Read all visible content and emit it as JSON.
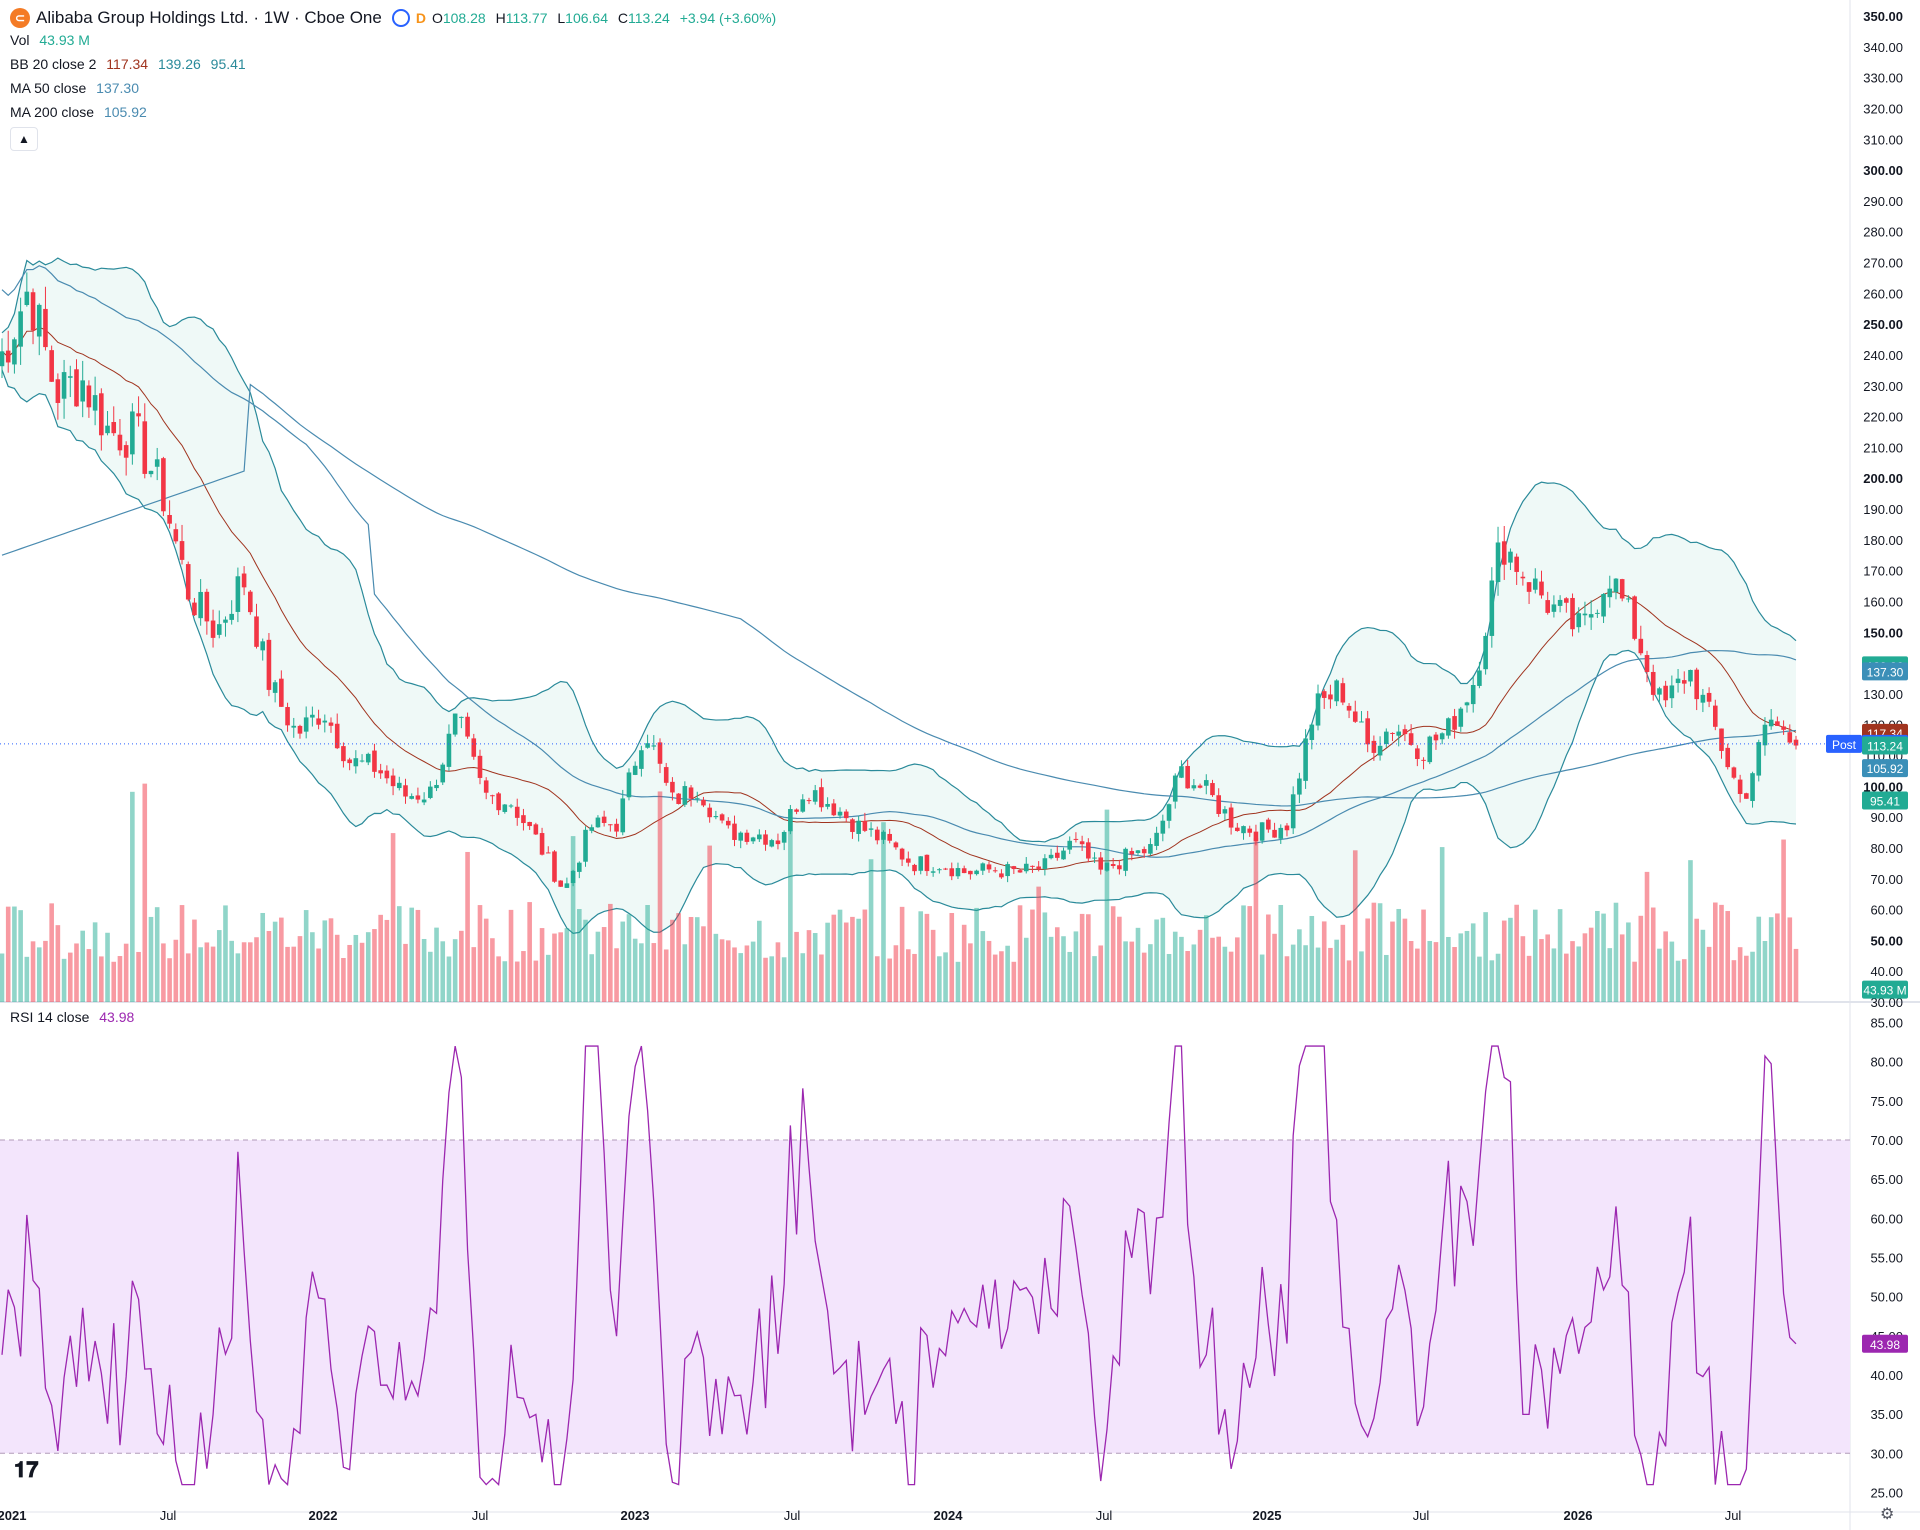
{
  "header": {
    "symbol_icon": "alibaba-logo-icon",
    "title": "Alibaba Group Holdings Ltd. · 1W · Cboe One",
    "delay_flag": "D",
    "ohlc": {
      "o_label": "O",
      "o": "108.28",
      "h_label": "H",
      "h": "113.77",
      "l_label": "L",
      "l": "106.64",
      "c_label": "C",
      "c": "113.24",
      "change": "+3.94 (+3.60%)"
    }
  },
  "indicators": {
    "vol": {
      "label": "Vol",
      "value": "43.93 M"
    },
    "bb": {
      "label": "BB 20 close 2",
      "basis": "117.34",
      "upper": "139.26",
      "lower": "95.41"
    },
    "ma50": {
      "label": "MA 50 close",
      "value": "137.30"
    },
    "ma200": {
      "label": "MA 200 close",
      "value": "105.92"
    },
    "rsi": {
      "label": "RSI 14 close",
      "value": "43.98"
    }
  },
  "colors": {
    "up": "#22ab94",
    "down": "#f23645",
    "bb": "#2a8a9a",
    "bb_basis": "#a0341f",
    "ma": "#4a8bb0",
    "rsi": "#9c27b0",
    "rsi_band": "#f3e5fc"
  },
  "price_axis": {
    "labels": [
      "350.00",
      "340.00",
      "330.00",
      "320.00",
      "310.00",
      "300.00",
      "290.00",
      "280.00",
      "270.00",
      "260.00",
      "250.00",
      "240.00",
      "230.00",
      "220.00",
      "210.00",
      "200.00",
      "190.00",
      "180.00",
      "170.00",
      "160.00",
      "150.00",
      "140.00",
      "130.00",
      "120.00",
      "110.00",
      "100.00",
      "90.00",
      "80.00",
      "70.00",
      "60.00",
      "50.00",
      "40.00",
      "30.00"
    ],
    "bold": [
      "350.00",
      "300.00",
      "250.00",
      "200.00",
      "150.00",
      "100.00",
      "50.00"
    ]
  },
  "price_tags": [
    {
      "text": "139.26",
      "price": 139.26,
      "color": "#22ab94"
    },
    {
      "text": "137.30",
      "price": 137.3,
      "color": "#3b8fb8"
    },
    {
      "text": "117.34",
      "price": 117.34,
      "color": "#a0341f"
    },
    {
      "text": "113.78",
      "price": 113.78,
      "color": "#2962ff",
      "prefix": "Post"
    },
    {
      "text": "113.24",
      "price": 113.24,
      "color": "#22ab94"
    },
    {
      "text": "105.92",
      "price": 105.92,
      "color": "#3b8fb8"
    },
    {
      "text": "95.41",
      "price": 95.41,
      "color": "#22ab94"
    },
    {
      "text": "43.93 M",
      "price": 34.0,
      "color": "#22ab94"
    }
  ],
  "rsi_axis": {
    "labels": [
      "85.00",
      "80.00",
      "75.00",
      "70.00",
      "65.00",
      "60.00",
      "55.00",
      "50.00",
      "45.00",
      "40.00",
      "35.00",
      "30.00",
      "25.00"
    ],
    "tag": "43.98"
  },
  "time_axis": [
    "2021",
    "Jul",
    "2022",
    "Jul",
    "2023",
    "Jul",
    "2024",
    "Jul",
    "2025",
    "Jul",
    "2026",
    "Jul"
  ],
  "icons": {
    "collapse": "chevron-up-icon",
    "logo": "tradingview-logo-icon",
    "settings": "gear-icon"
  },
  "chart_data": {
    "type": "candlestick",
    "title": "Alibaba Group Holdings Ltd. · 1W · Cboe One",
    "interval": "1W",
    "ylim": [
      30,
      350
    ],
    "series_points": [
      {
        "t": "2021-01",
        "close": 240
      },
      {
        "t": "2021-02",
        "close": 262
      },
      {
        "t": "2021-03",
        "close": 228
      },
      {
        "t": "2021-04",
        "close": 232
      },
      {
        "t": "2021-05",
        "close": 215
      },
      {
        "t": "2021-06",
        "close": 214
      },
      {
        "t": "2021-07",
        "close": 195
      },
      {
        "t": "2021-08",
        "close": 162
      },
      {
        "t": "2021-09",
        "close": 150
      },
      {
        "t": "2021-10",
        "close": 168
      },
      {
        "t": "2021-11",
        "close": 133
      },
      {
        "t": "2021-12",
        "close": 117
      },
      {
        "t": "2022-01",
        "close": 125
      },
      {
        "t": "2022-02",
        "close": 108
      },
      {
        "t": "2022-03",
        "close": 106
      },
      {
        "t": "2022-04",
        "close": 97
      },
      {
        "t": "2022-05",
        "close": 98
      },
      {
        "t": "2022-06",
        "close": 122
      },
      {
        "t": "2022-07",
        "close": 97
      },
      {
        "t": "2022-08",
        "close": 95
      },
      {
        "t": "2022-09",
        "close": 82
      },
      {
        "t": "2022-10",
        "close": 66
      },
      {
        "t": "2022-11",
        "close": 87
      },
      {
        "t": "2022-12",
        "close": 88
      },
      {
        "t": "2023-01",
        "close": 120
      },
      {
        "t": "2023-02",
        "close": 95
      },
      {
        "t": "2023-03",
        "close": 100
      },
      {
        "t": "2023-04",
        "close": 85
      },
      {
        "t": "2023-05",
        "close": 85
      },
      {
        "t": "2023-06",
        "close": 83
      },
      {
        "t": "2023-07",
        "close": 100
      },
      {
        "t": "2023-08",
        "close": 94
      },
      {
        "t": "2023-09",
        "close": 87
      },
      {
        "t": "2023-10",
        "close": 82
      },
      {
        "t": "2023-11",
        "close": 75
      },
      {
        "t": "2023-12",
        "close": 75
      },
      {
        "t": "2024-01",
        "close": 72
      },
      {
        "t": "2024-02",
        "close": 73
      },
      {
        "t": "2024-03",
        "close": 72
      },
      {
        "t": "2024-04",
        "close": 74
      },
      {
        "t": "2024-05",
        "close": 82
      },
      {
        "t": "2024-06",
        "close": 72
      },
      {
        "t": "2024-07",
        "close": 77
      },
      {
        "t": "2024-08",
        "close": 80
      },
      {
        "t": "2024-09",
        "close": 105
      },
      {
        "t": "2024-10",
        "close": 98
      },
      {
        "t": "2024-11",
        "close": 88
      },
      {
        "t": "2024-12",
        "close": 85
      },
      {
        "t": "2025-01",
        "close": 88
      },
      {
        "t": "2025-02",
        "close": 125
      },
      {
        "t": "2025-03",
        "close": 132
      },
      {
        "t": "2025-04",
        "close": 113
      },
      {
        "t": "2025-05",
        "close": 120
      },
      {
        "t": "2025-06",
        "close": 112
      },
      {
        "t": "2025-07",
        "close": 118
      },
      {
        "t": "2025-08",
        "close": 135
      },
      {
        "t": "2025-09",
        "close": 180
      },
      {
        "t": "2025-10",
        "close": 167
      },
      {
        "t": "2025-11",
        "close": 157
      },
      {
        "t": "2025-12",
        "close": 150
      },
      {
        "t": "2026-01",
        "close": 170
      },
      {
        "t": "2026-02",
        "close": 150
      },
      {
        "t": "2026-03",
        "close": 125
      },
      {
        "t": "2026-04",
        "close": 138
      },
      {
        "t": "2026-05",
        "close": 118
      },
      {
        "t": "2026-06",
        "close": 95
      },
      {
        "t": "2026-07",
        "close": 122
      },
      {
        "t": "2026-08",
        "close": 113.24
      }
    ],
    "rsi_ylim": [
      22.5,
      87.5
    ],
    "rsi_band": [
      30,
      70
    ]
  }
}
